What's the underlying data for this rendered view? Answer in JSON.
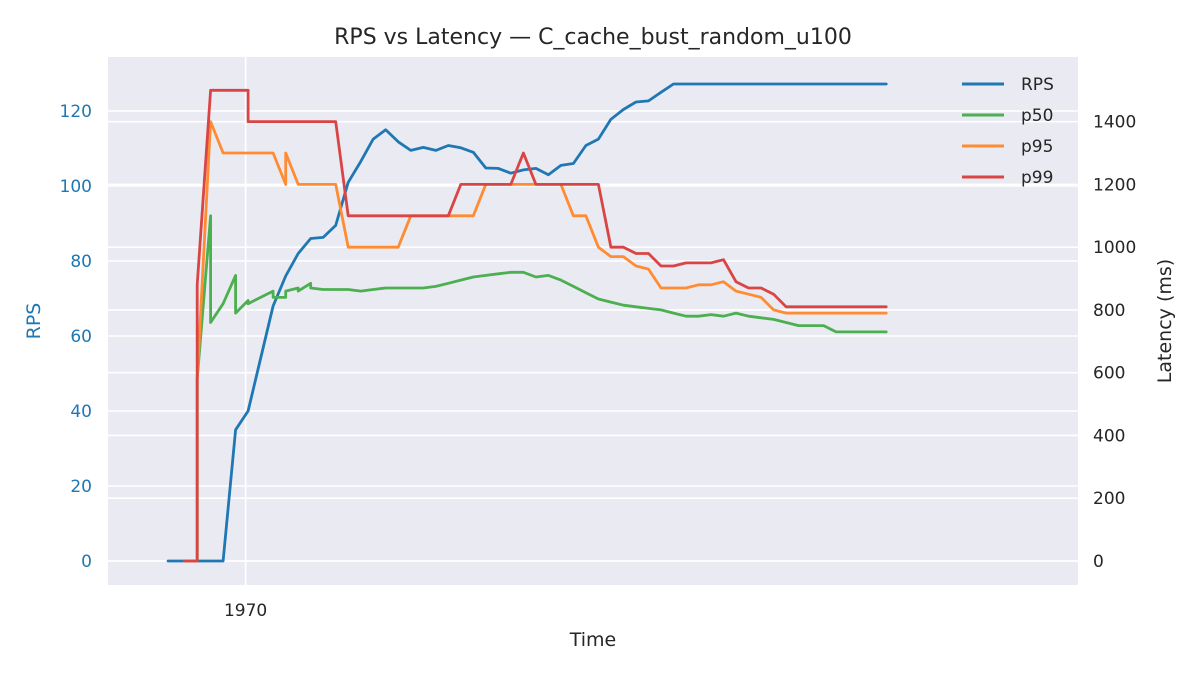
{
  "chart_data": {
    "type": "line",
    "title": "RPS vs Latency — C_cache_bust_random_u100",
    "xlabel": "Time",
    "x_tick_labels": [
      "1970"
    ],
    "y_left": {
      "label": "RPS",
      "ylim": [
        -6.4,
        134.4
      ],
      "ticks": [
        0,
        20,
        40,
        60,
        80,
        100,
        120
      ],
      "color": "#1f77b4"
    },
    "y_right": {
      "label": "Latency (ms)",
      "ylim": [
        -76.5,
        1606
      ],
      "ticks": [
        0,
        200,
        400,
        600,
        800,
        1000,
        1200,
        1400
      ]
    },
    "grid": true,
    "legend_position": "top-right",
    "series": [
      {
        "name": "RPS",
        "axis": "left",
        "color": "#1f77b4",
        "points": [
          [
            -9.3,
            0
          ],
          [
            -7.3,
            0
          ],
          [
            -5.8,
            0
          ],
          [
            -4.2,
            0
          ],
          [
            -2.7,
            0
          ],
          [
            -1.2,
            35
          ],
          [
            0.3,
            40
          ],
          [
            1.8,
            54
          ],
          [
            3.3,
            68
          ],
          [
            4.8,
            76
          ],
          [
            6.3,
            82
          ],
          [
            7.8,
            86
          ],
          [
            9.3,
            86.3
          ],
          [
            10.8,
            89.5
          ],
          [
            12.3,
            101
          ],
          [
            13.8,
            106.5
          ],
          [
            15.3,
            112.5
          ],
          [
            16.8,
            115
          ],
          [
            18.3,
            111.8
          ],
          [
            19.8,
            109.5
          ],
          [
            21.3,
            110.3
          ],
          [
            22.8,
            109.5
          ],
          [
            24.3,
            110.8
          ],
          [
            25.8,
            110.2
          ],
          [
            27.3,
            109
          ],
          [
            28.8,
            104.8
          ],
          [
            30.3,
            104.7
          ],
          [
            31.8,
            103.4
          ],
          [
            33.3,
            104.3
          ],
          [
            34.8,
            104.7
          ],
          [
            36.3,
            103
          ],
          [
            37.8,
            105.5
          ],
          [
            39.3,
            106
          ],
          [
            40.8,
            110.8
          ],
          [
            42.3,
            112.5
          ],
          [
            43.8,
            117.8
          ],
          [
            45.3,
            120.4
          ],
          [
            46.8,
            122.4
          ],
          [
            48.3,
            122.7
          ],
          [
            49.8,
            125
          ],
          [
            51.3,
            127.2
          ],
          [
            52.8,
            127.2
          ],
          [
            54.3,
            127.2
          ],
          [
            55.8,
            127.2
          ],
          [
            57.3,
            127.2
          ],
          [
            58.8,
            127.2
          ],
          [
            60.3,
            127.2
          ],
          [
            61.8,
            127.2
          ],
          [
            63.3,
            127.2
          ],
          [
            64.8,
            127.2
          ],
          [
            66.3,
            127.2
          ],
          [
            67.8,
            127.2
          ],
          [
            69.3,
            127.2
          ],
          [
            70.8,
            127.2
          ],
          [
            72.3,
            127.2
          ],
          [
            73.8,
            127.2
          ],
          [
            75.3,
            127.2
          ],
          [
            76.8,
            127.2
          ]
        ]
      },
      {
        "name": "p50",
        "axis": "right",
        "color": "#4caf50",
        "points": [
          [
            -7.3,
            0
          ],
          [
            -5.8,
            0
          ],
          [
            -5.8,
            580
          ],
          [
            -4.2,
            1100
          ],
          [
            -4.2,
            760
          ],
          [
            -2.7,
            820
          ],
          [
            -1.2,
            910
          ],
          [
            -1.2,
            790
          ],
          [
            0.3,
            830
          ],
          [
            0.3,
            820
          ],
          [
            1.8,
            840
          ],
          [
            3.3,
            860
          ],
          [
            3.3,
            840
          ],
          [
            4.8,
            840
          ],
          [
            4.8,
            860
          ],
          [
            6.3,
            870
          ],
          [
            6.3,
            860
          ],
          [
            7.8,
            885
          ],
          [
            7.8,
            870
          ],
          [
            9.3,
            865
          ],
          [
            10.8,
            865
          ],
          [
            12.3,
            865
          ],
          [
            13.8,
            860
          ],
          [
            15.3,
            865
          ],
          [
            16.8,
            870
          ],
          [
            18.3,
            870
          ],
          [
            19.8,
            870
          ],
          [
            21.3,
            870
          ],
          [
            22.8,
            875
          ],
          [
            24.3,
            885
          ],
          [
            25.8,
            895
          ],
          [
            27.3,
            905
          ],
          [
            28.8,
            910
          ],
          [
            30.3,
            915
          ],
          [
            31.8,
            920
          ],
          [
            33.3,
            920
          ],
          [
            34.8,
            905
          ],
          [
            36.3,
            910
          ],
          [
            37.8,
            895
          ],
          [
            39.3,
            875
          ],
          [
            40.8,
            855
          ],
          [
            42.3,
            835
          ],
          [
            43.8,
            825
          ],
          [
            45.3,
            815
          ],
          [
            46.8,
            810
          ],
          [
            48.3,
            805
          ],
          [
            49.8,
            800
          ],
          [
            51.3,
            790
          ],
          [
            52.8,
            780
          ],
          [
            54.3,
            780
          ],
          [
            55.8,
            785
          ],
          [
            57.3,
            780
          ],
          [
            58.8,
            790
          ],
          [
            60.3,
            780
          ],
          [
            61.8,
            775
          ],
          [
            63.3,
            770
          ],
          [
            64.8,
            760
          ],
          [
            66.3,
            750
          ],
          [
            67.8,
            750
          ],
          [
            69.3,
            750
          ],
          [
            70.8,
            730
          ],
          [
            72.3,
            730
          ],
          [
            73.8,
            730
          ],
          [
            75.3,
            730
          ],
          [
            76.8,
            730
          ]
        ]
      },
      {
        "name": "p95",
        "axis": "right",
        "color": "#ff8c33",
        "points": [
          [
            -7.3,
            0
          ],
          [
            -5.8,
            0
          ],
          [
            -5.8,
            580
          ],
          [
            -4.2,
            1400
          ],
          [
            -2.7,
            1300
          ],
          [
            -1.2,
            1300
          ],
          [
            0.3,
            1300
          ],
          [
            1.8,
            1300
          ],
          [
            3.3,
            1300
          ],
          [
            4.8,
            1200
          ],
          [
            4.8,
            1300
          ],
          [
            6.3,
            1200
          ],
          [
            7.8,
            1200
          ],
          [
            9.3,
            1200
          ],
          [
            10.8,
            1200
          ],
          [
            12.3,
            1000
          ],
          [
            13.8,
            1000
          ],
          [
            15.3,
            1000
          ],
          [
            16.8,
            1000
          ],
          [
            18.3,
            1000
          ],
          [
            19.8,
            1100
          ],
          [
            21.3,
            1100
          ],
          [
            22.8,
            1100
          ],
          [
            24.3,
            1100
          ],
          [
            25.8,
            1100
          ],
          [
            27.3,
            1100
          ],
          [
            28.8,
            1200
          ],
          [
            30.3,
            1200
          ],
          [
            31.8,
            1200
          ],
          [
            33.3,
            1200
          ],
          [
            34.8,
            1200
          ],
          [
            36.3,
            1200
          ],
          [
            37.8,
            1200
          ],
          [
            39.3,
            1100
          ],
          [
            40.8,
            1100
          ],
          [
            42.3,
            1000
          ],
          [
            43.8,
            970
          ],
          [
            45.3,
            970
          ],
          [
            46.8,
            940
          ],
          [
            48.3,
            930
          ],
          [
            49.8,
            870
          ],
          [
            51.3,
            870
          ],
          [
            52.8,
            870
          ],
          [
            54.3,
            880
          ],
          [
            55.8,
            880
          ],
          [
            57.3,
            890
          ],
          [
            58.8,
            860
          ],
          [
            60.3,
            850
          ],
          [
            61.8,
            840
          ],
          [
            63.3,
            800
          ],
          [
            64.8,
            790
          ],
          [
            66.3,
            790
          ],
          [
            67.8,
            790
          ],
          [
            69.3,
            790
          ],
          [
            70.8,
            790
          ],
          [
            72.3,
            790
          ],
          [
            73.8,
            790
          ],
          [
            75.3,
            790
          ],
          [
            76.8,
            790
          ]
        ]
      },
      {
        "name": "p99",
        "axis": "right",
        "color": "#d94545",
        "points": [
          [
            -7.3,
            0
          ],
          [
            -5.8,
            0
          ],
          [
            -5.8,
            880
          ],
          [
            -4.2,
            1500
          ],
          [
            -2.7,
            1500
          ],
          [
            -1.2,
            1500
          ],
          [
            0.3,
            1500
          ],
          [
            0.3,
            1400
          ],
          [
            1.8,
            1400
          ],
          [
            3.3,
            1400
          ],
          [
            4.8,
            1400
          ],
          [
            6.3,
            1400
          ],
          [
            7.8,
            1400
          ],
          [
            9.3,
            1400
          ],
          [
            10.8,
            1400
          ],
          [
            12.3,
            1100
          ],
          [
            13.8,
            1100
          ],
          [
            15.3,
            1100
          ],
          [
            16.8,
            1100
          ],
          [
            18.3,
            1100
          ],
          [
            19.8,
            1100
          ],
          [
            21.3,
            1100
          ],
          [
            22.8,
            1100
          ],
          [
            24.3,
            1100
          ],
          [
            25.8,
            1200
          ],
          [
            27.3,
            1200
          ],
          [
            28.8,
            1200
          ],
          [
            30.3,
            1200
          ],
          [
            31.8,
            1200
          ],
          [
            33.3,
            1300
          ],
          [
            34.8,
            1200
          ],
          [
            36.3,
            1200
          ],
          [
            37.8,
            1200
          ],
          [
            39.3,
            1200
          ],
          [
            40.8,
            1200
          ],
          [
            42.3,
            1200
          ],
          [
            43.8,
            1000
          ],
          [
            45.3,
            1000
          ],
          [
            46.8,
            980
          ],
          [
            48.3,
            980
          ],
          [
            49.8,
            940
          ],
          [
            51.3,
            940
          ],
          [
            52.8,
            950
          ],
          [
            54.3,
            950
          ],
          [
            55.8,
            950
          ],
          [
            57.3,
            960
          ],
          [
            58.8,
            890
          ],
          [
            60.3,
            870
          ],
          [
            61.8,
            870
          ],
          [
            63.3,
            850
          ],
          [
            64.8,
            810
          ],
          [
            66.3,
            810
          ],
          [
            67.8,
            810
          ],
          [
            69.3,
            810
          ],
          [
            70.8,
            810
          ],
          [
            72.3,
            810
          ],
          [
            73.8,
            810
          ],
          [
            75.3,
            810
          ],
          [
            76.8,
            810
          ]
        ]
      }
    ]
  }
}
